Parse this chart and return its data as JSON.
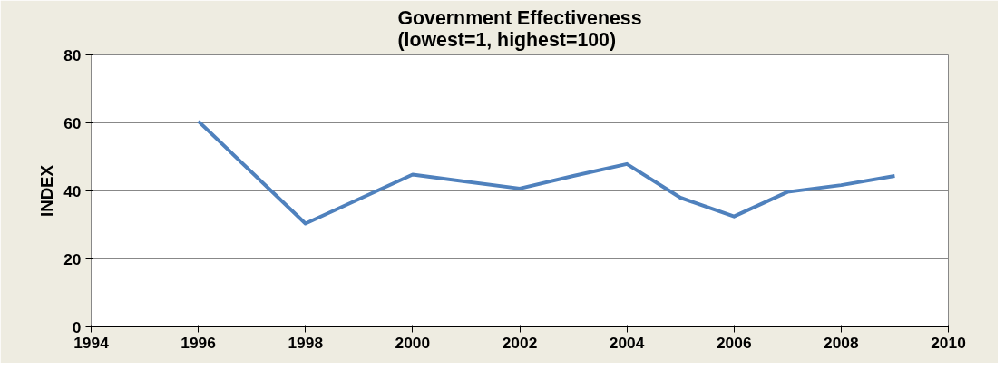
{
  "chart_data": {
    "type": "line",
    "title": "Government Effectiveness\n(lowest=1, highest=100)",
    "ylabel": "INDEX",
    "x": [
      1996,
      1998,
      2000,
      2002,
      2003,
      2004,
      2005,
      2006,
      2007,
      2008,
      2009
    ],
    "series": [
      {
        "color": "#4f81bd",
        "values": [
          60.5,
          30.4,
          44.8,
          40.7,
          44.4,
          47.9,
          38,
          32.5,
          39.7,
          41.7,
          44.4
        ]
      }
    ],
    "xlim": [
      1994,
      2010
    ],
    "xticks": [
      1994,
      1996,
      1998,
      2000,
      2002,
      2004,
      2006,
      2008,
      2010
    ],
    "ylim": [
      0,
      80
    ],
    "yticks": [
      0,
      20,
      40,
      60,
      80
    ],
    "grid": "y",
    "marker": "none",
    "line_style": "solid"
  }
}
